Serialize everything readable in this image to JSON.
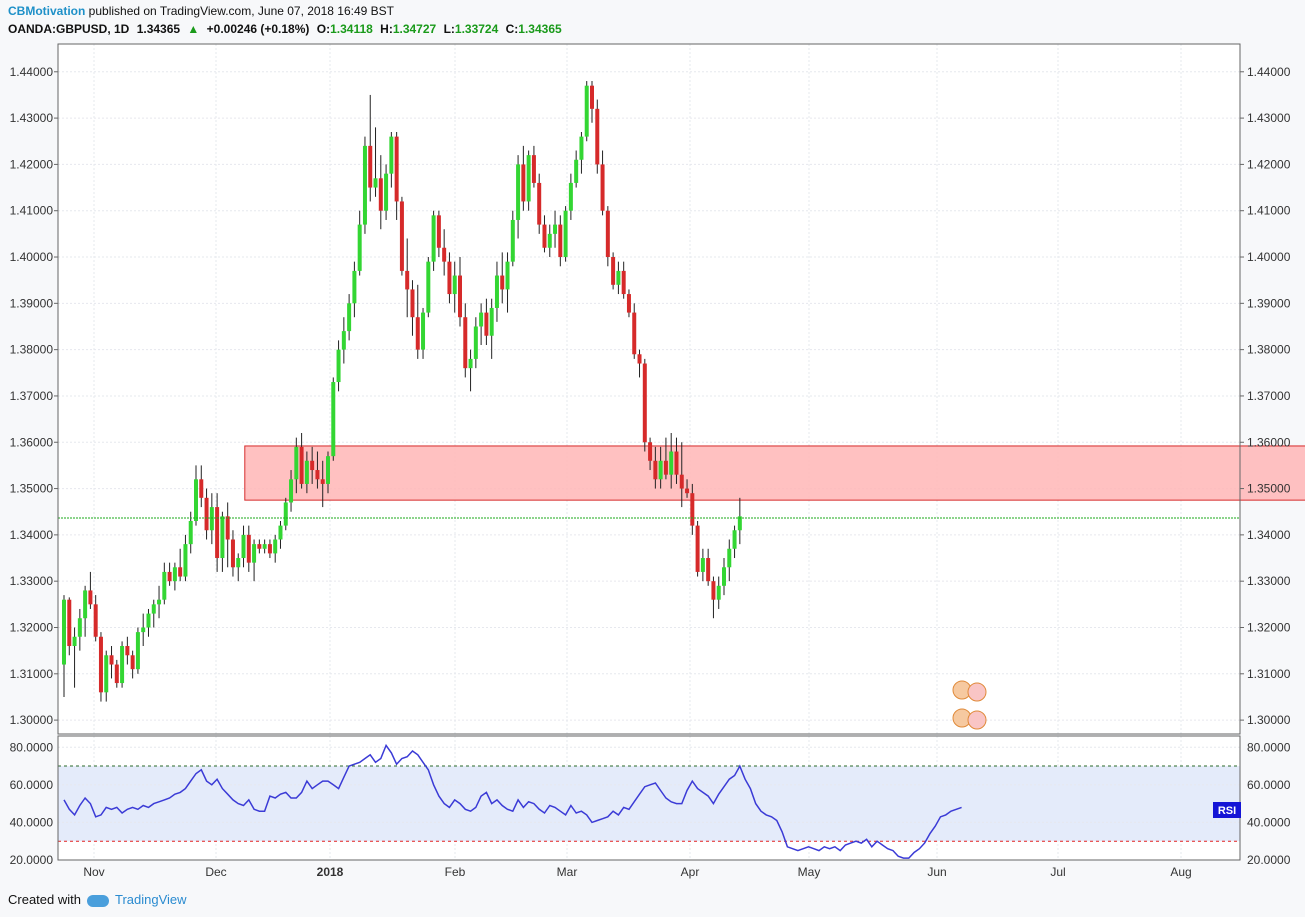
{
  "header": {
    "author": "CBMotivation",
    "published": "published on TradingView.com, June 07, 2018 16:49 BST",
    "symbol": "OANDA:GBPUSD, 1D",
    "last": "1.34365",
    "change": "+0.00246 (+0.18%)",
    "o_label": "O:",
    "o_val": "1.34118",
    "h_label": "H:",
    "h_val": "1.34727",
    "l_label": "L:",
    "l_val": "1.33724",
    "c_label": "C:",
    "c_val": "1.34365"
  },
  "footer": {
    "created_with": "Created with",
    "brand": "TradingView"
  },
  "colors": {
    "up": "#33d633",
    "down": "#d62a2a",
    "zone_fill": "#ffb6b6",
    "zone_stroke": "#d62a2a",
    "rsi_line": "#3b3bd6",
    "rsi_band": "#e4ebfa",
    "level_line": "#1aaa1a"
  },
  "chart_data": [
    {
      "type": "candlestick",
      "symbol": "OANDA:GBPUSD",
      "interval": "1D",
      "ylim": [
        1.297,
        1.446
      ],
      "y_ticks": [
        "1.30000",
        "1.31000",
        "1.32000",
        "1.33000",
        "1.34000",
        "1.35000",
        "1.36000",
        "1.37000",
        "1.38000",
        "1.39000",
        "1.40000",
        "1.41000",
        "1.42000",
        "1.43000",
        "1.44000"
      ],
      "x_labels": [
        "Nov",
        "Dec",
        "2018",
        "Feb",
        "Mar",
        "Apr",
        "May",
        "Jun",
        "Jul",
        "Aug"
      ],
      "current_price_line": 1.34365,
      "resistance_zone": {
        "low": 1.3475,
        "high": 1.3592,
        "from_index": 35,
        "to_index": 240
      },
      "ohlc": [
        [
          1.312,
          1.327,
          1.305,
          1.326
        ],
        [
          1.326,
          1.3265,
          1.314,
          1.316
        ],
        [
          1.316,
          1.32,
          1.307,
          1.318
        ],
        [
          1.318,
          1.324,
          1.315,
          1.322
        ],
        [
          1.322,
          1.329,
          1.318,
          1.328
        ],
        [
          1.328,
          1.332,
          1.324,
          1.325
        ],
        [
          1.325,
          1.327,
          1.317,
          1.318
        ],
        [
          1.318,
          1.319,
          1.304,
          1.306
        ],
        [
          1.306,
          1.315,
          1.304,
          1.314
        ],
        [
          1.314,
          1.316,
          1.309,
          1.312
        ],
        [
          1.312,
          1.313,
          1.307,
          1.308
        ],
        [
          1.308,
          1.317,
          1.307,
          1.316
        ],
        [
          1.316,
          1.318,
          1.312,
          1.314
        ],
        [
          1.314,
          1.315,
          1.309,
          1.311
        ],
        [
          1.311,
          1.32,
          1.31,
          1.319
        ],
        [
          1.319,
          1.323,
          1.316,
          1.32
        ],
        [
          1.32,
          1.324,
          1.318,
          1.323
        ],
        [
          1.323,
          1.326,
          1.32,
          1.325
        ],
        [
          1.325,
          1.329,
          1.322,
          1.326
        ],
        [
          1.326,
          1.334,
          1.325,
          1.332
        ],
        [
          1.332,
          1.334,
          1.329,
          1.33
        ],
        [
          1.33,
          1.334,
          1.328,
          1.333
        ],
        [
          1.333,
          1.337,
          1.33,
          1.331
        ],
        [
          1.331,
          1.34,
          1.33,
          1.338
        ],
        [
          1.338,
          1.345,
          1.336,
          1.343
        ],
        [
          1.343,
          1.355,
          1.342,
          1.352
        ],
        [
          1.352,
          1.355,
          1.346,
          1.348
        ],
        [
          1.348,
          1.35,
          1.339,
          1.341
        ],
        [
          1.341,
          1.349,
          1.338,
          1.346
        ],
        [
          1.346,
          1.349,
          1.332,
          1.335
        ],
        [
          1.335,
          1.345,
          1.332,
          1.344
        ],
        [
          1.344,
          1.347,
          1.333,
          1.339
        ],
        [
          1.339,
          1.341,
          1.331,
          1.333
        ],
        [
          1.333,
          1.336,
          1.33,
          1.335
        ],
        [
          1.335,
          1.342,
          1.333,
          1.34
        ],
        [
          1.34,
          1.342,
          1.332,
          1.334
        ],
        [
          1.334,
          1.339,
          1.33,
          1.338
        ],
        [
          1.338,
          1.339,
          1.336,
          1.337
        ],
        [
          1.337,
          1.339,
          1.336,
          1.338
        ],
        [
          1.338,
          1.339,
          1.335,
          1.336
        ],
        [
          1.336,
          1.34,
          1.334,
          1.339
        ],
        [
          1.339,
          1.343,
          1.337,
          1.342
        ],
        [
          1.342,
          1.348,
          1.341,
          1.347
        ],
        [
          1.347,
          1.354,
          1.345,
          1.352
        ],
        [
          1.352,
          1.361,
          1.349,
          1.359
        ],
        [
          1.359,
          1.362,
          1.35,
          1.351
        ],
        [
          1.351,
          1.358,
          1.349,
          1.356
        ],
        [
          1.356,
          1.359,
          1.351,
          1.354
        ],
        [
          1.354,
          1.358,
          1.35,
          1.352
        ],
        [
          1.352,
          1.356,
          1.346,
          1.351
        ],
        [
          1.351,
          1.358,
          1.349,
          1.357
        ],
        [
          1.357,
          1.374,
          1.356,
          1.373
        ],
        [
          1.373,
          1.382,
          1.371,
          1.38
        ],
        [
          1.38,
          1.387,
          1.377,
          1.384
        ],
        [
          1.384,
          1.392,
          1.382,
          1.39
        ],
        [
          1.39,
          1.399,
          1.387,
          1.397
        ],
        [
          1.397,
          1.41,
          1.396,
          1.407
        ],
        [
          1.407,
          1.426,
          1.405,
          1.424
        ],
        [
          1.424,
          1.435,
          1.412,
          1.415
        ],
        [
          1.415,
          1.428,
          1.413,
          1.417
        ],
        [
          1.417,
          1.422,
          1.406,
          1.41
        ],
        [
          1.41,
          1.42,
          1.408,
          1.418
        ],
        [
          1.418,
          1.427,
          1.415,
          1.426
        ],
        [
          1.426,
          1.427,
          1.408,
          1.412
        ],
        [
          1.412,
          1.413,
          1.396,
          1.397
        ],
        [
          1.397,
          1.404,
          1.387,
          1.393
        ],
        [
          1.393,
          1.395,
          1.383,
          1.387
        ],
        [
          1.387,
          1.394,
          1.378,
          1.38
        ],
        [
          1.38,
          1.389,
          1.378,
          1.388
        ],
        [
          1.388,
          1.4,
          1.387,
          1.399
        ],
        [
          1.399,
          1.41,
          1.397,
          1.409
        ],
        [
          1.409,
          1.41,
          1.4,
          1.402
        ],
        [
          1.402,
          1.406,
          1.396,
          1.399
        ],
        [
          1.399,
          1.401,
          1.39,
          1.392
        ],
        [
          1.392,
          1.399,
          1.388,
          1.396
        ],
        [
          1.396,
          1.4,
          1.385,
          1.387
        ],
        [
          1.387,
          1.39,
          1.374,
          1.376
        ],
        [
          1.376,
          1.38,
          1.371,
          1.378
        ],
        [
          1.378,
          1.387,
          1.376,
          1.385
        ],
        [
          1.385,
          1.39,
          1.381,
          1.388
        ],
        [
          1.388,
          1.391,
          1.381,
          1.383
        ],
        [
          1.383,
          1.391,
          1.378,
          1.389
        ],
        [
          1.389,
          1.399,
          1.386,
          1.396
        ],
        [
          1.396,
          1.401,
          1.39,
          1.393
        ],
        [
          1.393,
          1.401,
          1.388,
          1.399
        ],
        [
          1.399,
          1.41,
          1.398,
          1.408
        ],
        [
          1.408,
          1.422,
          1.404,
          1.42
        ],
        [
          1.42,
          1.424,
          1.41,
          1.412
        ],
        [
          1.412,
          1.423,
          1.41,
          1.422
        ],
        [
          1.422,
          1.424,
          1.415,
          1.416
        ],
        [
          1.416,
          1.418,
          1.405,
          1.407
        ],
        [
          1.407,
          1.409,
          1.401,
          1.402
        ],
        [
          1.402,
          1.407,
          1.4,
          1.405
        ],
        [
          1.405,
          1.41,
          1.402,
          1.407
        ],
        [
          1.407,
          1.409,
          1.398,
          1.4
        ],
        [
          1.4,
          1.411,
          1.399,
          1.41
        ],
        [
          1.41,
          1.418,
          1.408,
          1.416
        ],
        [
          1.416,
          1.423,
          1.415,
          1.421
        ],
        [
          1.421,
          1.427,
          1.418,
          1.426
        ],
        [
          1.426,
          1.438,
          1.425,
          1.437
        ],
        [
          1.437,
          1.438,
          1.429,
          1.432
        ],
        [
          1.432,
          1.434,
          1.418,
          1.42
        ],
        [
          1.42,
          1.423,
          1.409,
          1.41
        ],
        [
          1.41,
          1.411,
          1.398,
          1.4
        ],
        [
          1.4,
          1.401,
          1.393,
          1.394
        ],
        [
          1.394,
          1.399,
          1.392,
          1.397
        ],
        [
          1.397,
          1.399,
          1.391,
          1.392
        ],
        [
          1.392,
          1.393,
          1.387,
          1.388
        ],
        [
          1.388,
          1.39,
          1.378,
          1.379
        ],
        [
          1.379,
          1.38,
          1.374,
          1.377
        ],
        [
          1.377,
          1.378,
          1.358,
          1.36
        ],
        [
          1.36,
          1.361,
          1.354,
          1.356
        ],
        [
          1.356,
          1.359,
          1.35,
          1.352
        ],
        [
          1.352,
          1.359,
          1.35,
          1.356
        ],
        [
          1.356,
          1.361,
          1.352,
          1.353
        ],
        [
          1.353,
          1.362,
          1.35,
          1.358
        ],
        [
          1.358,
          1.361,
          1.351,
          1.353
        ],
        [
          1.353,
          1.36,
          1.346,
          1.35
        ],
        [
          1.35,
          1.352,
          1.348,
          1.349
        ],
        [
          1.349,
          1.351,
          1.34,
          1.342
        ],
        [
          1.342,
          1.343,
          1.331,
          1.332
        ],
        [
          1.332,
          1.337,
          1.33,
          1.335
        ],
        [
          1.335,
          1.337,
          1.329,
          1.33
        ],
        [
          1.33,
          1.331,
          1.322,
          1.326
        ],
        [
          1.326,
          1.331,
          1.324,
          1.329
        ],
        [
          1.329,
          1.335,
          1.327,
          1.333
        ],
        [
          1.333,
          1.339,
          1.33,
          1.337
        ],
        [
          1.337,
          1.342,
          1.335,
          1.341
        ],
        [
          1.341,
          1.348,
          1.338,
          1.344
        ]
      ]
    },
    {
      "type": "line",
      "name": "RSI",
      "ylim": [
        20,
        86
      ],
      "y_ticks": [
        "20.0000",
        "40.0000",
        "60.0000",
        "80.0000"
      ],
      "levels": [
        70,
        30
      ],
      "values": [
        52,
        47,
        44,
        49,
        53,
        50,
        43,
        44,
        48,
        47,
        48,
        45,
        47,
        48,
        47,
        49,
        48,
        50,
        51,
        52,
        53,
        55,
        56,
        58,
        62,
        66,
        68,
        62,
        60,
        63,
        58,
        55,
        52,
        50,
        49,
        52,
        47,
        46,
        46,
        54,
        53,
        55,
        56,
        53,
        53,
        56,
        62,
        58,
        60,
        62,
        62,
        60,
        58,
        64,
        70,
        71,
        72,
        74,
        76,
        72,
        74,
        81,
        77,
        71,
        74,
        75,
        78,
        76,
        72,
        68,
        60,
        54,
        50,
        48,
        52,
        50,
        47,
        46,
        48,
        54,
        56,
        50,
        52,
        49,
        47,
        46,
        52,
        48,
        51,
        50,
        47,
        45,
        49,
        48,
        46,
        44,
        49,
        45,
        46,
        44,
        40,
        41,
        42,
        43,
        46,
        44,
        48,
        47,
        51,
        55,
        59,
        60,
        61,
        57,
        53,
        51,
        50,
        50,
        57,
        62,
        58,
        56,
        54,
        50,
        55,
        59,
        63,
        65,
        70,
        63,
        58,
        50,
        46,
        44,
        43,
        41,
        35,
        27,
        26,
        25,
        26,
        27,
        26,
        25,
        27,
        26,
        27,
        25,
        28,
        29,
        30,
        29,
        31,
        27,
        30,
        28,
        26,
        25,
        22,
        21,
        21,
        24,
        26,
        29,
        34,
        38,
        43,
        44,
        46,
        47,
        48
      ]
    }
  ]
}
